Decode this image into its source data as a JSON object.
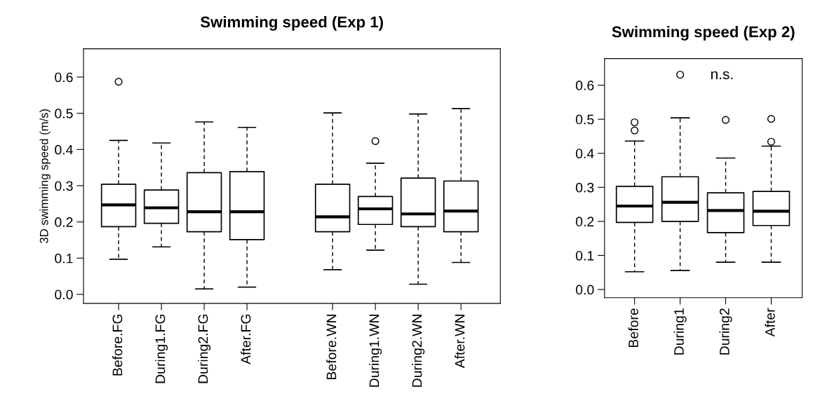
{
  "chart_data": [
    {
      "type": "box",
      "title": "Swimming speed (Exp 1)",
      "ylabel": "3D swimming speed (m/s)",
      "categories": [
        "Before.FG",
        "During1.FG",
        "During2.FG",
        "After.FG",
        null,
        "Before.WN",
        "During1.WN",
        "During2.WN",
        "After.WN"
      ],
      "boxes": [
        {
          "low": 0.097,
          "q1": 0.187,
          "median": 0.247,
          "q3": 0.304,
          "high": 0.425,
          "outliers": [
            0.587
          ]
        },
        {
          "low": 0.131,
          "q1": 0.196,
          "median": 0.239,
          "q3": 0.288,
          "high": 0.418
        },
        {
          "low": 0.015,
          "q1": 0.173,
          "median": 0.228,
          "q3": 0.336,
          "high": 0.476
        },
        {
          "low": 0.02,
          "q1": 0.151,
          "median": 0.228,
          "q3": 0.339,
          "high": 0.461
        },
        null,
        {
          "low": 0.068,
          "q1": 0.173,
          "median": 0.214,
          "q3": 0.304,
          "high": 0.501
        },
        {
          "low": 0.122,
          "q1": 0.193,
          "median": 0.236,
          "q3": 0.27,
          "high": 0.362,
          "outliers": [
            0.423
          ]
        },
        {
          "low": 0.028,
          "q1": 0.187,
          "median": 0.222,
          "q3": 0.321,
          "high": 0.498
        },
        {
          "low": 0.088,
          "q1": 0.173,
          "median": 0.23,
          "q3": 0.313,
          "high": 0.513
        }
      ],
      "ylim": [
        -0.025,
        0.678
      ],
      "yticks": [
        {
          "value": 0,
          "label": "0.0"
        },
        0.1,
        0.2,
        0.3,
        0.4,
        0.5,
        0.6
      ],
      "grid": false,
      "legend": false
    },
    {
      "type": "box",
      "title": "Swimming speed (Exp 2)",
      "categories": [
        "Before",
        "During1",
        "During2",
        "After"
      ],
      "boxes": [
        {
          "low": 0.052,
          "q1": 0.197,
          "median": 0.245,
          "q3": 0.303,
          "high": 0.436,
          "outliers": [
            0.491,
            0.467
          ]
        },
        {
          "low": 0.056,
          "q1": 0.2,
          "median": 0.256,
          "q3": 0.331,
          "high": 0.504,
          "outliers": [
            0.631
          ]
        },
        {
          "low": 0.08,
          "q1": 0.167,
          "median": 0.232,
          "q3": 0.284,
          "high": 0.386,
          "outliers": [
            0.498
          ]
        },
        {
          "low": 0.08,
          "q1": 0.188,
          "median": 0.23,
          "q3": 0.288,
          "high": 0.421,
          "outliers": [
            0.501,
            0.434
          ]
        }
      ],
      "annotations": [
        "n.s."
      ],
      "ylim": [
        -0.024,
        0.678
      ],
      "yticks": [
        {
          "value": 0,
          "label": "0.0"
        },
        0.1,
        0.2,
        0.3,
        0.4,
        0.5,
        0.6
      ],
      "grid": false,
      "legend": false
    }
  ]
}
